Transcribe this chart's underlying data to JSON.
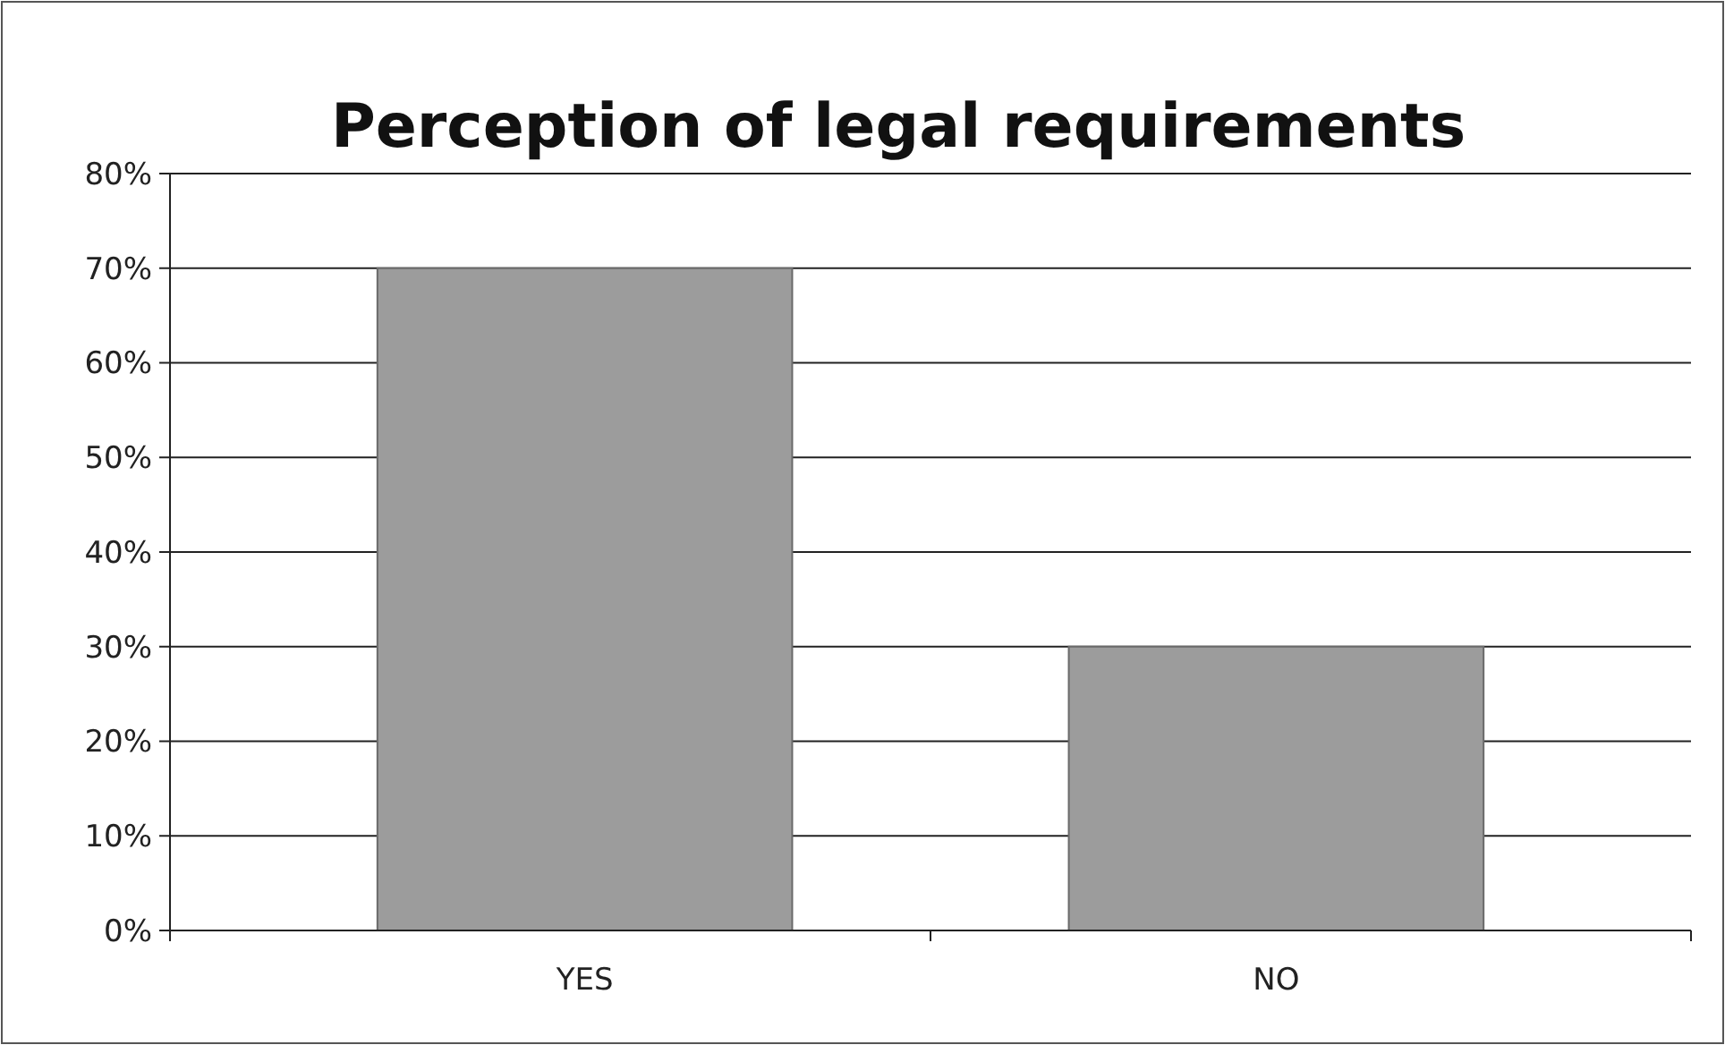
{
  "chart_data": {
    "type": "bar",
    "title": "Perception of legal requirements",
    "categories": [
      "YES",
      "NO"
    ],
    "values": [
      70,
      30
    ],
    "color": "#9c9c9c",
    "ylim": [
      0,
      80
    ],
    "yticks": [
      {
        "value": 0,
        "label": "0%"
      },
      {
        "value": 10,
        "label": "10%"
      },
      {
        "value": 20,
        "label": "20%"
      },
      {
        "value": 30,
        "label": "30%"
      },
      {
        "value": 40,
        "label": "40%"
      },
      {
        "value": 50,
        "label": "50%"
      },
      {
        "value": 60,
        "label": "60%"
      },
      {
        "value": 70,
        "label": "70%"
      },
      {
        "value": 80,
        "label": "80%"
      }
    ],
    "grid": "y"
  }
}
